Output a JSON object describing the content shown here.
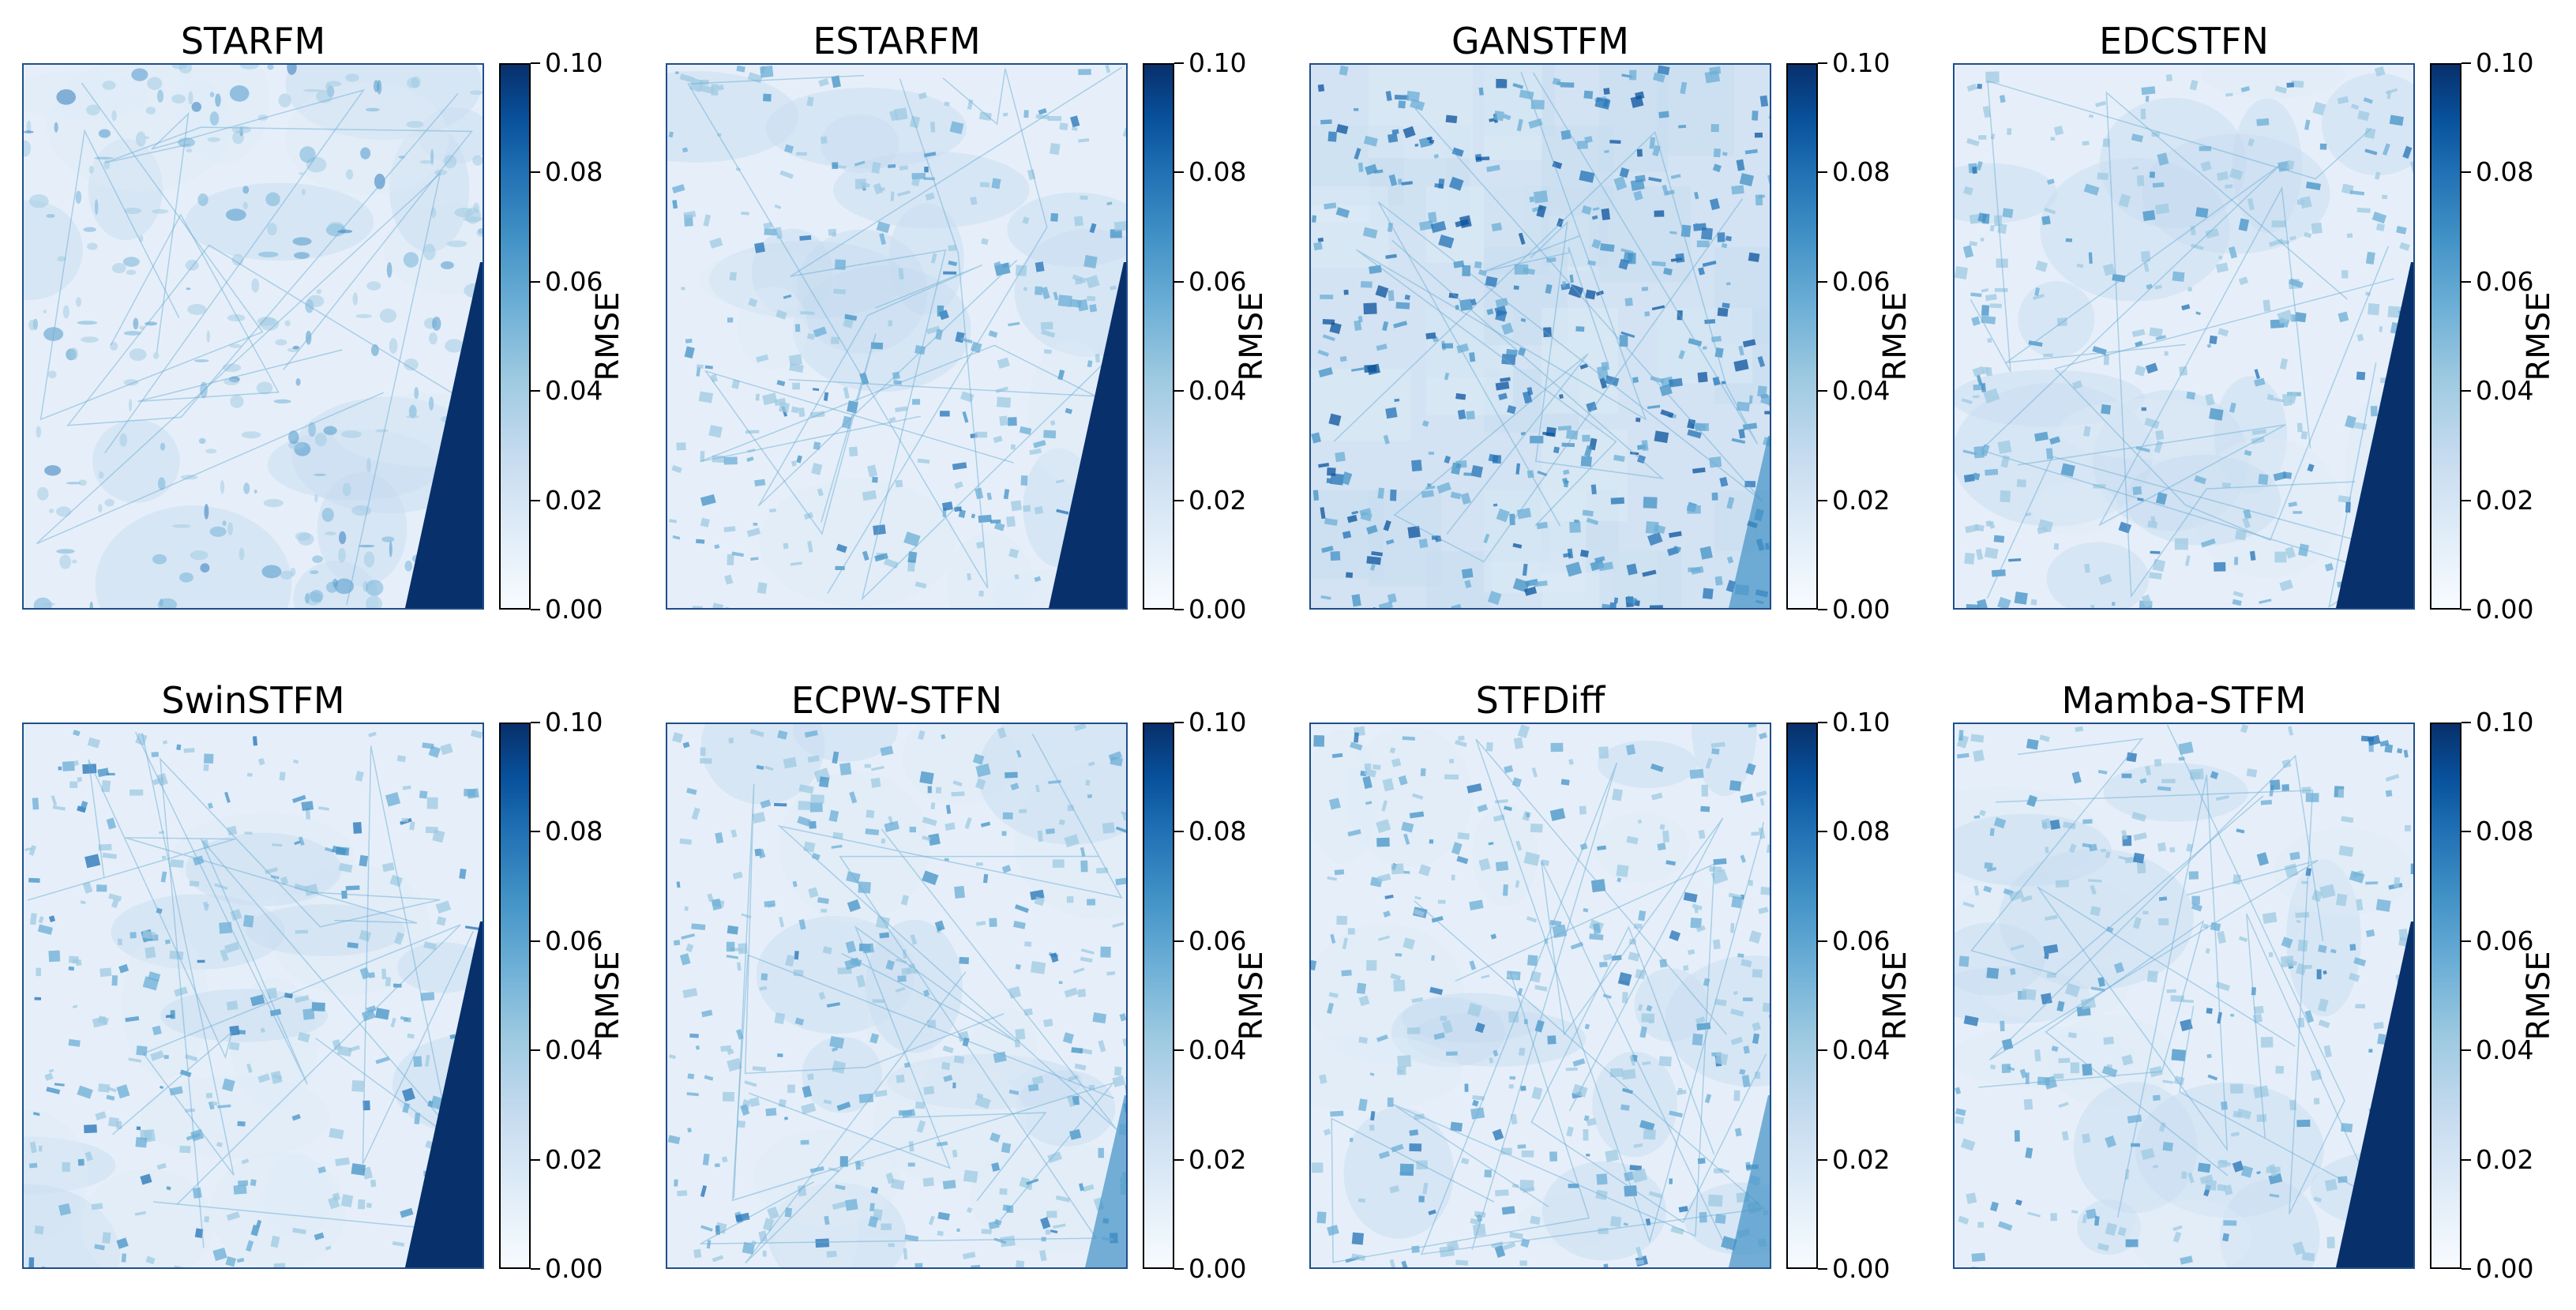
{
  "figure": {
    "colormap": [
      "#f7fbff",
      "#deebf7",
      "#c6dbef",
      "#9ecae1",
      "#6baed6",
      "#4292c6",
      "#2171b5",
      "#08519c",
      "#08306b"
    ],
    "colorbar_label": "RMSE",
    "colorbar_ticks": [
      "0.00",
      "0.02",
      "0.04",
      "0.06",
      "0.08",
      "0.10"
    ],
    "colorbar_range": [
      0.0,
      0.1
    ]
  },
  "panels": [
    {
      "title": "STARFM",
      "nodata_wedge": true,
      "texture": "blurry"
    },
    {
      "title": "ESTARFM",
      "nodata_wedge": true,
      "texture": "fine"
    },
    {
      "title": "GANSTFM",
      "nodata_wedge": false,
      "texture": "patchy"
    },
    {
      "title": "EDCSTFN",
      "nodata_wedge": true,
      "texture": "fine"
    },
    {
      "title": "SwinSTFM",
      "nodata_wedge": true,
      "texture": "fine"
    },
    {
      "title": "ECPW-STFN",
      "nodata_wedge": false,
      "texture": "fields"
    },
    {
      "title": "STFDiff",
      "nodata_wedge": false,
      "texture": "fields"
    },
    {
      "title": "Mamba-STFM",
      "nodata_wedge": true,
      "texture": "fine"
    }
  ]
}
